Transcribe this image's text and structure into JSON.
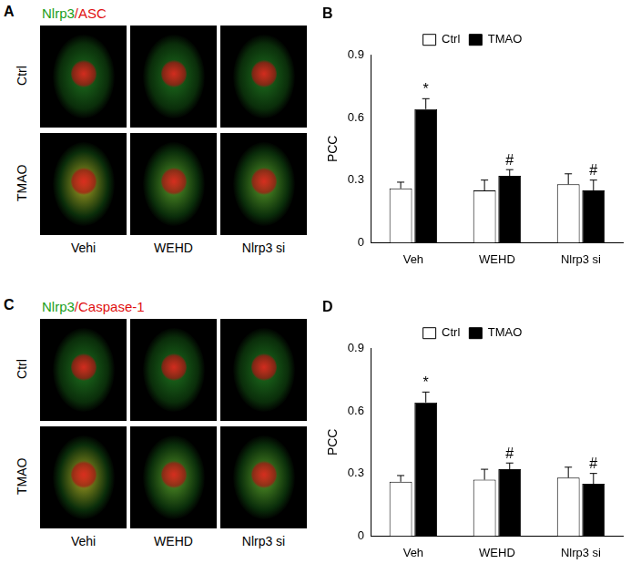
{
  "chart_data": [
    {
      "type": "bar",
      "title": "B",
      "y_label": "PCC",
      "categories": [
        "Veh",
        "WEHD",
        "Nlrp3 si"
      ],
      "series": [
        {
          "name": "Ctrl",
          "color": "#ffffff",
          "values": [
            0.26,
            0.25,
            0.28
          ],
          "errors": [
            0.03,
            0.05,
            0.05
          ]
        },
        {
          "name": "TMAO",
          "color": "#000000",
          "values": [
            0.64,
            0.32,
            0.25
          ],
          "errors": [
            0.05,
            0.03,
            0.05
          ]
        }
      ],
      "annotations": [
        {
          "text": "*",
          "category": "Veh",
          "series": "TMAO"
        },
        {
          "text": "#",
          "category": "WEHD",
          "series": "TMAO"
        },
        {
          "text": "#",
          "category": "Nlrp3 si",
          "series": "TMAO"
        }
      ],
      "ylim": [
        0,
        0.9
      ],
      "yticks": [
        0,
        0.3,
        0.6,
        0.9
      ],
      "grid": false,
      "legend": "top"
    },
    {
      "type": "bar",
      "title": "D",
      "y_label": "PCC",
      "categories": [
        "Veh",
        "WEHD",
        "Nlrp3 si"
      ],
      "series": [
        {
          "name": "Ctrl",
          "color": "#ffffff",
          "values": [
            0.26,
            0.27,
            0.28
          ],
          "errors": [
            0.03,
            0.05,
            0.05
          ]
        },
        {
          "name": "TMAO",
          "color": "#000000",
          "values": [
            0.64,
            0.32,
            0.25
          ],
          "errors": [
            0.05,
            0.03,
            0.05
          ]
        }
      ],
      "annotations": [
        {
          "text": "*",
          "category": "Veh",
          "series": "TMAO"
        },
        {
          "text": "#",
          "category": "WEHD",
          "series": "TMAO"
        },
        {
          "text": "#",
          "category": "Nlrp3 si",
          "series": "TMAO"
        }
      ],
      "ylim": [
        0,
        0.9
      ],
      "yticks": [
        0,
        0.3,
        0.6,
        0.9
      ],
      "grid": false,
      "legend": "top"
    }
  ],
  "image_panels": [
    {
      "panel": "A",
      "title_parts": [
        {
          "text": "Nlrp3",
          "color": "#1aa01a"
        },
        {
          "text": "/ASC",
          "color": "#e01010"
        }
      ],
      "rows": [
        "Ctrl",
        "TMAO"
      ],
      "columns": [
        "Vehi",
        "WEHD",
        "Nlrp3 si"
      ]
    },
    {
      "panel": "C",
      "title_parts": [
        {
          "text": "Nlrp3",
          "color": "#1aa01a"
        },
        {
          "text": "/Caspase-1",
          "color": "#e01010"
        }
      ],
      "rows": [
        "Ctrl",
        "TMAO"
      ],
      "columns": [
        "Vehi",
        "WEHD",
        "Nlrp3 si"
      ]
    }
  ]
}
